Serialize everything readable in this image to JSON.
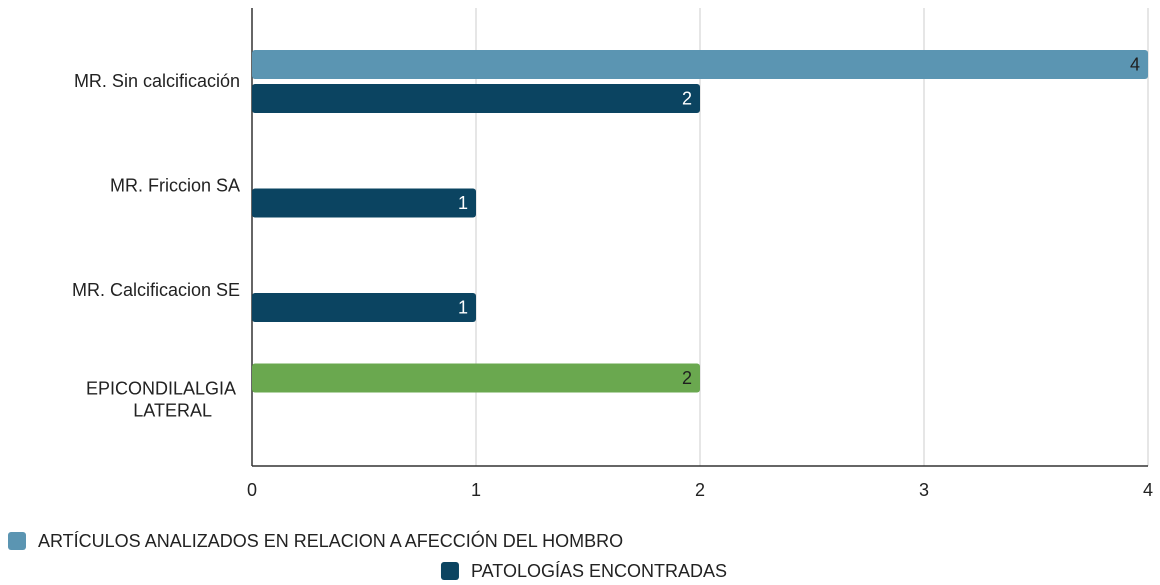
{
  "chart_data": {
    "type": "hbar",
    "categories": [
      "MR. Sin calcificación",
      "MR. Friccion SA",
      "MR. Calcificacion SE",
      "EPICONDILALGIA LATERAL"
    ],
    "series": [
      {
        "name": "ARTÍCULOS ANALIZADOS EN RELACION A AFECCIÓN DEL HOMBRO",
        "color": "#5b95b2",
        "values": [
          4,
          null,
          null,
          2
        ],
        "point_colors": [
          "#5b95b2",
          "#5b95b2",
          "#5b95b2",
          "#6aa84f"
        ],
        "label_color": "#1f1f1f"
      },
      {
        "name": "PATOLOGÍAS ENCONTRADAS",
        "color": "#0b4461",
        "values": [
          2,
          1,
          1,
          null
        ],
        "label_color": "#ffffff"
      }
    ],
    "xlim": [
      0,
      4
    ],
    "xticks": [
      0,
      1,
      2,
      3,
      4
    ],
    "grid": true
  }
}
